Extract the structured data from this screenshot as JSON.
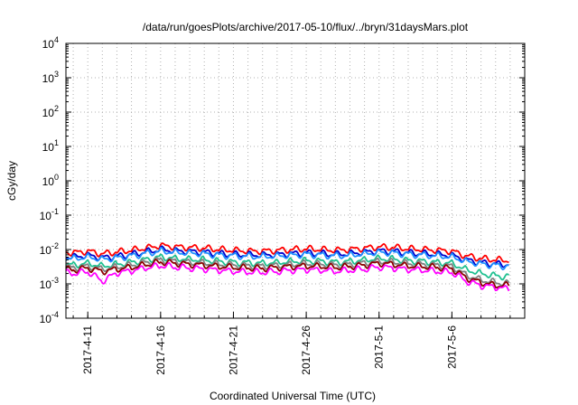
{
  "chart_data": {
    "type": "line",
    "title": "/data/run/goesPlots/archive/2017-05-10/flux/../bryn/31daysMars.plot",
    "xlabel": "Coordinated Universal Time (UTC)",
    "ylabel": "cGy/day",
    "yscale": "log",
    "ylim": [
      0.0001,
      10000
    ],
    "xlim": [
      "2017-04-09T12:00",
      "2017-05-11T00:00"
    ],
    "grid": true,
    "x_ticks": [
      "2017-4-11",
      "2017-4-16",
      "2017-4-21",
      "2017-4-26",
      "2017-5-1",
      "2017-5-6"
    ],
    "y_ticks": [
      {
        "base": "10",
        "exp": "-4"
      },
      {
        "base": "10",
        "exp": "-3"
      },
      {
        "base": "10",
        "exp": "-2"
      },
      {
        "base": "10",
        "exp": "-1"
      },
      {
        "base": "10",
        "exp": "0"
      },
      {
        "base": "10",
        "exp": "1"
      },
      {
        "base": "10",
        "exp": "2"
      },
      {
        "base": "10",
        "exp": "3"
      },
      {
        "base": "10",
        "exp": "4"
      }
    ],
    "x": [
      "2017-04-09",
      "2017-04-10",
      "2017-04-11",
      "2017-04-12",
      "2017-04-13",
      "2017-04-14",
      "2017-04-15",
      "2017-04-16",
      "2017-04-17",
      "2017-04-18",
      "2017-04-19",
      "2017-04-20",
      "2017-04-21",
      "2017-04-22",
      "2017-04-23",
      "2017-04-24",
      "2017-04-25",
      "2017-04-26",
      "2017-04-27",
      "2017-04-28",
      "2017-04-29",
      "2017-04-30",
      "2017-05-01",
      "2017-05-02",
      "2017-05-03",
      "2017-05-04",
      "2017-05-05",
      "2017-05-06",
      "2017-05-07",
      "2017-05-08",
      "2017-05-09",
      "2017-05-10"
    ],
    "series": [
      {
        "color": "#ff0000",
        "values": [
          0.0085,
          0.008,
          0.009,
          0.0075,
          0.0085,
          0.0095,
          0.011,
          0.013,
          0.012,
          0.0115,
          0.011,
          0.01,
          0.0095,
          0.009,
          0.009,
          0.0095,
          0.01,
          0.0105,
          0.01,
          0.0095,
          0.01,
          0.011,
          0.012,
          0.0115,
          0.0105,
          0.01,
          0.0095,
          0.009,
          0.0065,
          0.0055,
          0.005,
          0.0048
        ]
      },
      {
        "color": "#0000cc",
        "values": [
          0.0065,
          0.006,
          0.0068,
          0.0058,
          0.0064,
          0.0072,
          0.0085,
          0.01,
          0.0092,
          0.0088,
          0.0084,
          0.0076,
          0.0072,
          0.007,
          0.0069,
          0.0072,
          0.0076,
          0.008,
          0.0076,
          0.0072,
          0.0076,
          0.0084,
          0.0092,
          0.0088,
          0.008,
          0.0076,
          0.0072,
          0.0068,
          0.005,
          0.0042,
          0.0038,
          0.0036
        ]
      },
      {
        "color": "#1e90ff",
        "values": [
          0.0058,
          0.0054,
          0.0061,
          0.0052,
          0.0057,
          0.0064,
          0.0076,
          0.009,
          0.0083,
          0.0079,
          0.0075,
          0.0068,
          0.0065,
          0.0063,
          0.0062,
          0.0065,
          0.0068,
          0.0072,
          0.0068,
          0.0065,
          0.0068,
          0.0075,
          0.0083,
          0.0079,
          0.0072,
          0.0068,
          0.0065,
          0.0061,
          0.0045,
          0.0038,
          0.0034,
          0.0032
        ]
      },
      {
        "color": "#20c090",
        "values": [
          0.0038,
          0.0035,
          0.004,
          0.0033,
          0.0037,
          0.0042,
          0.005,
          0.006,
          0.0055,
          0.0052,
          0.005,
          0.0045,
          0.0042,
          0.0041,
          0.004,
          0.0042,
          0.0045,
          0.0047,
          0.0045,
          0.0042,
          0.0045,
          0.005,
          0.0055,
          0.0052,
          0.0047,
          0.0045,
          0.0042,
          0.004,
          0.0026,
          0.002,
          0.0017,
          0.0016
        ]
      },
      {
        "color": "#808080",
        "values": [
          0.0032,
          0.0029,
          0.0033,
          0.0027,
          0.0031,
          0.0035,
          0.0042,
          0.005,
          0.0046,
          0.0043,
          0.0041,
          0.0037,
          0.0035,
          0.0034,
          0.0033,
          0.0035,
          0.0037,
          0.0039,
          0.0037,
          0.0035,
          0.0037,
          0.0041,
          0.0046,
          0.0043,
          0.0039,
          0.0037,
          0.0035,
          0.0033,
          0.0018,
          0.0013,
          0.0011,
          0.001
        ]
      },
      {
        "color": "#8b0000",
        "values": [
          0.0028,
          0.0025,
          0.0029,
          0.0023,
          0.0027,
          0.003,
          0.0036,
          0.0043,
          0.004,
          0.0037,
          0.0035,
          0.0032,
          0.003,
          0.0029,
          0.0028,
          0.003,
          0.0032,
          0.0033,
          0.0032,
          0.003,
          0.0032,
          0.0035,
          0.004,
          0.0037,
          0.0033,
          0.0032,
          0.003,
          0.0028,
          0.0015,
          0.0011,
          0.0009,
          0.0009
        ]
      },
      {
        "color": "#ff00ff",
        "values": [
          0.0022,
          0.002,
          0.0023,
          0.0012,
          0.0021,
          0.0024,
          0.0029,
          0.0034,
          0.0031,
          0.0029,
          0.0027,
          0.0025,
          0.0023,
          0.0022,
          0.0022,
          0.0023,
          0.0025,
          0.0026,
          0.0025,
          0.0023,
          0.0025,
          0.0027,
          0.0031,
          0.0029,
          0.0026,
          0.0025,
          0.0023,
          0.0022,
          0.0012,
          0.0009,
          0.0008,
          0.0007
        ]
      }
    ]
  }
}
